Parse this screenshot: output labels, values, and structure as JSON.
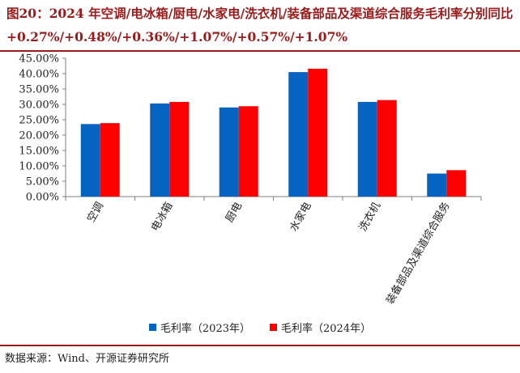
{
  "title": "图20：2024 年空调/电冰箱/厨电/水家电/洗衣机/装备部品及渠道综合服务毛利率分别同比+0.27%/+0.48%/+0.36%/+1.07%/+0.57%/+1.07%",
  "source": "数据来源：Wind、开源证券研究所",
  "colors": {
    "series_2023": "#0563C1",
    "series_2024": "#FF0000",
    "accent": "#9B1B1B"
  },
  "chart_data": {
    "type": "bar",
    "categories": [
      "空调",
      "电冰箱",
      "厨电",
      "水家电",
      "洗衣机",
      "装备部品及渠道综合服务"
    ],
    "series": [
      {
        "name": "毛利率（2023年）",
        "values": [
          23.6,
          30.3,
          29.0,
          40.5,
          30.8,
          7.5
        ]
      },
      {
        "name": "毛利率（2024年）",
        "values": [
          23.9,
          30.8,
          29.4,
          41.6,
          31.4,
          8.6
        ]
      }
    ],
    "yticks": [
      "0.00%",
      "5.00%",
      "10.00%",
      "15.00%",
      "20.00%",
      "25.00%",
      "30.00%",
      "35.00%",
      "40.00%",
      "45.00%"
    ],
    "ylim": [
      0,
      45
    ],
    "legend": "bottom",
    "grid": false
  }
}
